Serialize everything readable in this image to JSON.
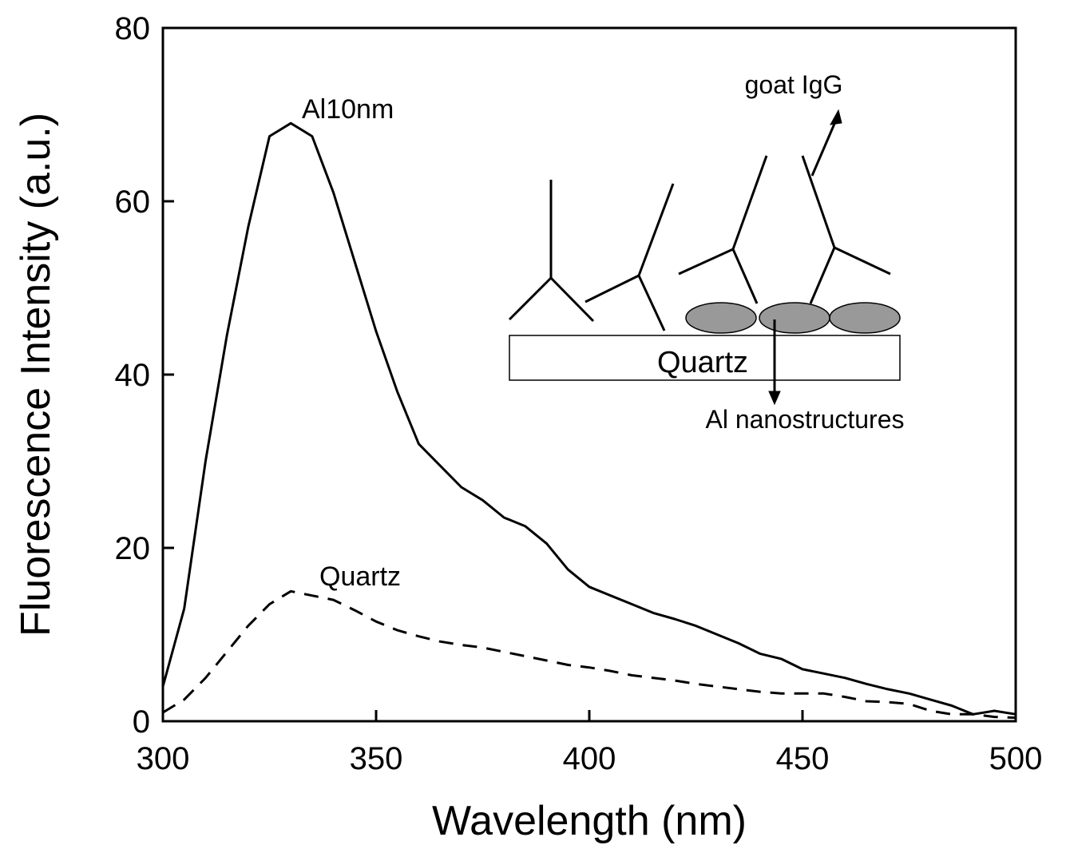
{
  "chart_data": {
    "type": "line",
    "x_label": "Wavelength (nm)",
    "y_label": "Fluorescence Intensity (a.u.)",
    "x": [
      300,
      305,
      310,
      315,
      320,
      325,
      330,
      335,
      340,
      345,
      350,
      355,
      360,
      365,
      370,
      375,
      380,
      385,
      390,
      395,
      400,
      405,
      410,
      415,
      420,
      425,
      430,
      435,
      440,
      445,
      450,
      455,
      460,
      465,
      470,
      475,
      480,
      485,
      490,
      495,
      500
    ],
    "series": [
      {
        "name": "Al10nm",
        "color": "#000000",
        "dash": "solid",
        "values": [
          4,
          13,
          30,
          44.5,
          57,
          67.5,
          69,
          67.5,
          61,
          53,
          45,
          38,
          32,
          29.5,
          27,
          25.5,
          23.5,
          22.5,
          20.5,
          17.5,
          15.5,
          14.5,
          13.5,
          12.5,
          11.8,
          11,
          10,
          9,
          7.8,
          7.2,
          6,
          5.5,
          5,
          4.3,
          3.7,
          3.2,
          2.5,
          1.8,
          0.8,
          1.2,
          0.8
        ]
      },
      {
        "name": "Quartz",
        "color": "#000000",
        "dash": "dashed",
        "values": [
          1,
          2.5,
          5,
          8,
          11,
          13.5,
          15,
          14.5,
          14,
          12.8,
          11.5,
          10.5,
          9.8,
          9.2,
          8.8,
          8.5,
          8,
          7.5,
          7,
          6.5,
          6.2,
          5.8,
          5.3,
          5,
          4.7,
          4.3,
          4,
          3.7,
          3.4,
          3.2,
          3.2,
          3.2,
          2.8,
          2.3,
          2.2,
          2,
          1.2,
          0.8,
          0.8,
          0.5,
          0.4
        ]
      }
    ],
    "xlim": [
      300,
      500
    ],
    "xticks": [
      300,
      350,
      400,
      450,
      500
    ],
    "ylim": [
      0,
      80
    ],
    "yticks": [
      0,
      20,
      40,
      60,
      80
    ],
    "grid": false,
    "inset": {
      "substrate": "Quartz",
      "antibody": "goat IgG",
      "particles": "Al nanostructures"
    }
  }
}
